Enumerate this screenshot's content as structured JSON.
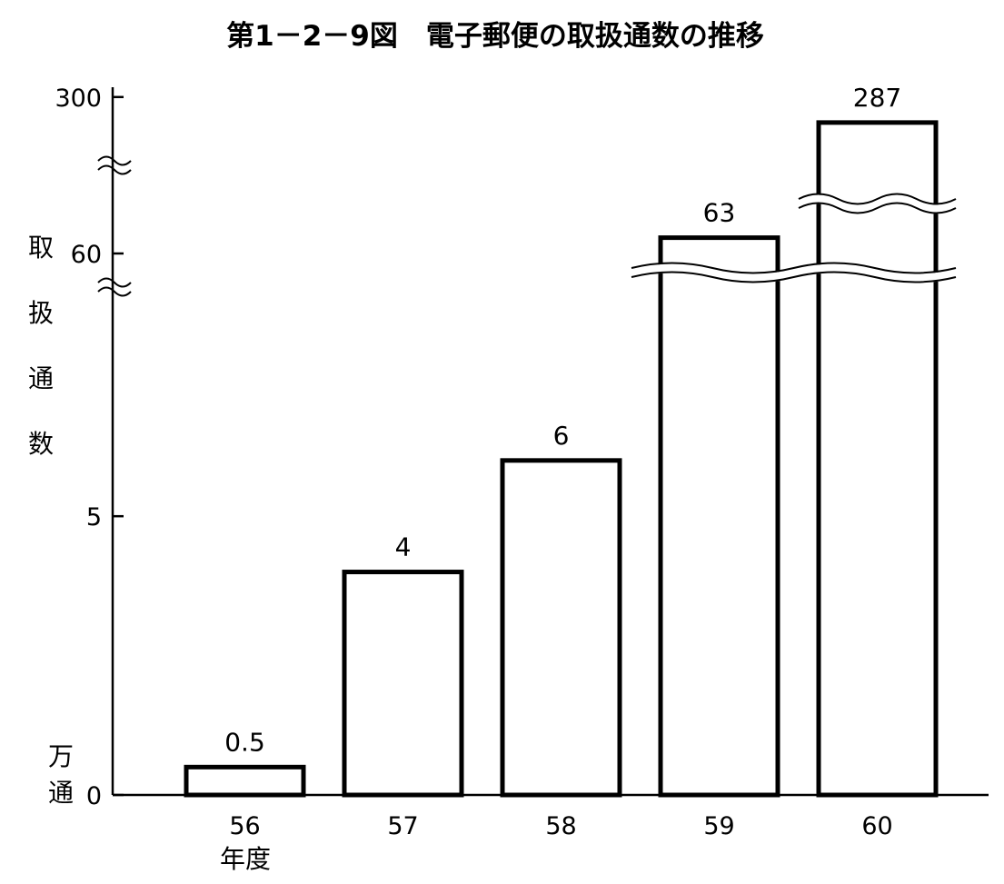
{
  "chart_data": {
    "type": "bar",
    "title": "第1－2－9図　電子郵便の取扱通数の推移",
    "ylabel": "取扱通数",
    "yunit": "万通",
    "xlabel": "年度",
    "categories": [
      "56",
      "57",
      "58",
      "59",
      "60"
    ],
    "values": [
      0.5,
      4,
      6,
      63,
      287
    ],
    "value_labels": [
      "0.5",
      "4",
      "6",
      "63",
      "287"
    ],
    "yticks": [
      "0",
      "5",
      "60",
      "300"
    ],
    "y_axis_breaks": [
      [
        6.6,
        55
      ],
      [
        65,
        280
      ]
    ],
    "bars_with_break_marks": [
      "59",
      "60"
    ],
    "grid": false,
    "legend": "none",
    "bar_fill": "#ffffff",
    "bar_stroke": "#000000"
  }
}
